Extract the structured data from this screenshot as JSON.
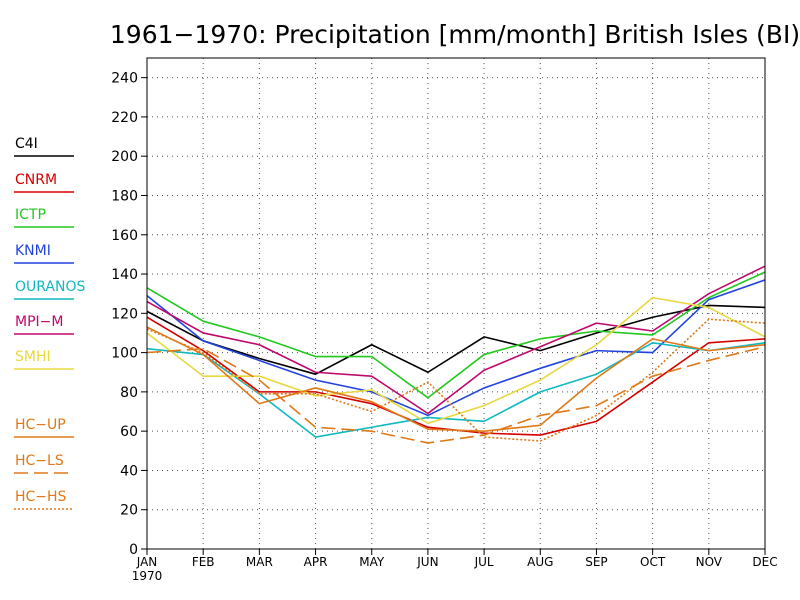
{
  "chart_data": {
    "type": "line",
    "title": "1961−1970: Precipitation [mm/month] British Isles (BI)",
    "categories": [
      "JAN",
      "FEB",
      "MAR",
      "APR",
      "MAY",
      "JUN",
      "JUL",
      "AUG",
      "SEP",
      "OCT",
      "NOV",
      "DEC"
    ],
    "x_sublabel": "1970",
    "ylim": [
      0,
      250
    ],
    "yticks": [
      0,
      20,
      40,
      60,
      80,
      100,
      120,
      140,
      160,
      180,
      200,
      220,
      240
    ],
    "grid": true,
    "legend_position": "left",
    "series": [
      {
        "name": "C4I",
        "color": "#000000",
        "dash": "solid",
        "values": [
          121,
          106,
          97,
          89,
          104,
          90,
          108,
          101,
          110,
          118,
          124,
          123
        ]
      },
      {
        "name": "CNRM",
        "color": "#d40000",
        "dash": "solid",
        "values": [
          118,
          101,
          80,
          80,
          74,
          62,
          59,
          58,
          65,
          85,
          105,
          107
        ]
      },
      {
        "name": "ICTP",
        "color": "#22c81e",
        "dash": "solid",
        "values": [
          133,
          116,
          108,
          98,
          98,
          77,
          99,
          107,
          111,
          109,
          128,
          141
        ]
      },
      {
        "name": "KNMI",
        "color": "#2244dd",
        "dash": "solid",
        "values": [
          129,
          106,
          96,
          86,
          80,
          68,
          82,
          92,
          101,
          100,
          127,
          137
        ]
      },
      {
        "name": "OURANOS",
        "color": "#10b8c0",
        "dash": "solid",
        "values": [
          102,
          99,
          79,
          57,
          62,
          67,
          65,
          80,
          89,
          105,
          101,
          105
        ]
      },
      {
        "name": "MPI−M",
        "color": "#c0086c",
        "dash": "solid",
        "values": [
          126,
          110,
          104,
          90,
          88,
          69,
          91,
          103,
          115,
          111,
          130,
          144
        ]
      },
      {
        "name": "SMHI",
        "color": "#e8d840",
        "dash": "solid",
        "values": [
          110,
          88,
          88,
          78,
          81,
          64,
          73,
          86,
          104,
          128,
          123,
          108
        ]
      },
      {
        "name": "HC−UP",
        "color": "#e07818",
        "dash": "solid",
        "values": [
          113,
          99,
          74,
          82,
          75,
          61,
          60,
          63,
          87,
          107,
          101,
          104
        ]
      },
      {
        "name": "HC−LS",
        "color": "#e07818",
        "dash": "dashed",
        "values": [
          100,
          102,
          86,
          62,
          60,
          54,
          58,
          68,
          73,
          88,
          96,
          103
        ]
      },
      {
        "name": "HC−HS",
        "color": "#e07818",
        "dash": "dotted",
        "values": [
          112,
          100,
          79,
          79,
          70,
          85,
          57,
          55,
          68,
          90,
          117,
          115
        ]
      }
    ]
  }
}
